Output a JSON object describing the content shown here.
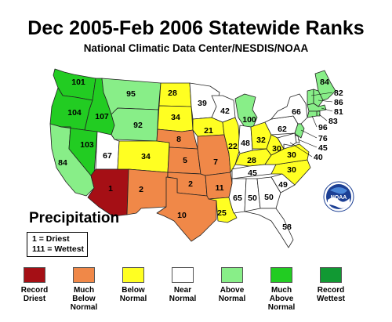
{
  "header": {
    "title": "Dec 2005-Feb 2006 Statewide Ranks",
    "subtitle": "National Climatic Data Center/NESDIS/NOAA"
  },
  "legend": {
    "heading": "Precipitation",
    "key_line_1": "1 = Driest",
    "key_line_2": "111 = Wettest",
    "items": [
      {
        "line1": "Record",
        "line2": "Driest",
        "color": "#a50f15"
      },
      {
        "line1": "Much",
        "line2": "Below",
        "line3": "Normal",
        "color": "#f08848"
      },
      {
        "line1": "Below",
        "line2": "Normal",
        "color": "#ffff22"
      },
      {
        "line1": "Near",
        "line2": "Normal",
        "color": "#ffffff"
      },
      {
        "line1": "Above",
        "line2": "Normal",
        "color": "#88ee88"
      },
      {
        "line1": "Much",
        "line2": "Above",
        "line3": "Normal",
        "color": "#22cc22"
      },
      {
        "line1": "Record",
        "line2": "Wettest",
        "color": "#119933"
      }
    ]
  },
  "logo_text": "NOAA",
  "states": [
    {
      "abbr": "WA",
      "rank": "101",
      "category": "much_above"
    },
    {
      "abbr": "OR",
      "rank": "104",
      "category": "much_above"
    },
    {
      "abbr": "ID",
      "rank": "107",
      "category": "much_above"
    },
    {
      "abbr": "MT",
      "rank": "95",
      "category": "above"
    },
    {
      "abbr": "WY",
      "rank": "92",
      "category": "above"
    },
    {
      "abbr": "CA",
      "rank": "84",
      "category": "above"
    },
    {
      "abbr": "NV",
      "rank": "103",
      "category": "much_above"
    },
    {
      "abbr": "UT",
      "rank": "67",
      "category": "near"
    },
    {
      "abbr": "AZ",
      "rank": "1",
      "category": "record_driest"
    },
    {
      "abbr": "CO",
      "rank": "34",
      "category": "below"
    },
    {
      "abbr": "NM",
      "rank": "2",
      "category": "much_below"
    },
    {
      "abbr": "ND",
      "rank": "28",
      "category": "below"
    },
    {
      "abbr": "SD",
      "rank": "34",
      "category": "below"
    },
    {
      "abbr": "NE",
      "rank": "8",
      "category": "much_below"
    },
    {
      "abbr": "KS",
      "rank": "5",
      "category": "much_below"
    },
    {
      "abbr": "OK",
      "rank": "2",
      "category": "much_below"
    },
    {
      "abbr": "TX",
      "rank": "10",
      "category": "much_below"
    },
    {
      "abbr": "MN",
      "rank": "39",
      "category": "near"
    },
    {
      "abbr": "IA",
      "rank": "21",
      "category": "below"
    },
    {
      "abbr": "MO",
      "rank": "7",
      "category": "much_below"
    },
    {
      "abbr": "AR",
      "rank": "11",
      "category": "much_below"
    },
    {
      "abbr": "LA",
      "rank": "25",
      "category": "below"
    },
    {
      "abbr": "WI",
      "rank": "42",
      "category": "near"
    },
    {
      "abbr": "IL",
      "rank": "22",
      "category": "below"
    },
    {
      "abbr": "MI",
      "rank": "100",
      "category": "above"
    },
    {
      "abbr": "IN",
      "rank": "48",
      "category": "near"
    },
    {
      "abbr": "OH",
      "rank": "32",
      "category": "below"
    },
    {
      "abbr": "KY",
      "rank": "28",
      "category": "below"
    },
    {
      "abbr": "TN",
      "rank": "45",
      "category": "near"
    },
    {
      "abbr": "MS",
      "rank": "65",
      "category": "near"
    },
    {
      "abbr": "AL",
      "rank": "50",
      "category": "near"
    },
    {
      "abbr": "GA",
      "rank": "50",
      "category": "near"
    },
    {
      "abbr": "FL",
      "rank": "58",
      "category": "near"
    },
    {
      "abbr": "SC",
      "rank": "49",
      "category": "near"
    },
    {
      "abbr": "NC",
      "rank": "30",
      "category": "below"
    },
    {
      "abbr": "VA",
      "rank": "30",
      "category": "below"
    },
    {
      "abbr": "WV",
      "rank": "30",
      "category": "below"
    },
    {
      "abbr": "PA",
      "rank": "62",
      "category": "near"
    },
    {
      "abbr": "NY",
      "rank": "66",
      "category": "near"
    },
    {
      "abbr": "ME",
      "rank": "84",
      "category": "above"
    },
    {
      "abbr": "VT",
      "rank": "82",
      "category": "above"
    },
    {
      "abbr": "NH",
      "rank": "86",
      "category": "above"
    },
    {
      "abbr": "MA",
      "rank": "81",
      "category": "above"
    },
    {
      "abbr": "RI",
      "rank": "83",
      "category": "above"
    },
    {
      "abbr": "CT",
      "rank": "96",
      "category": "above"
    },
    {
      "abbr": "NJ",
      "rank": "76",
      "category": "above"
    },
    {
      "abbr": "DE",
      "rank": "45",
      "category": "near"
    },
    {
      "abbr": "MD",
      "rank": "40",
      "category": "near"
    }
  ]
}
